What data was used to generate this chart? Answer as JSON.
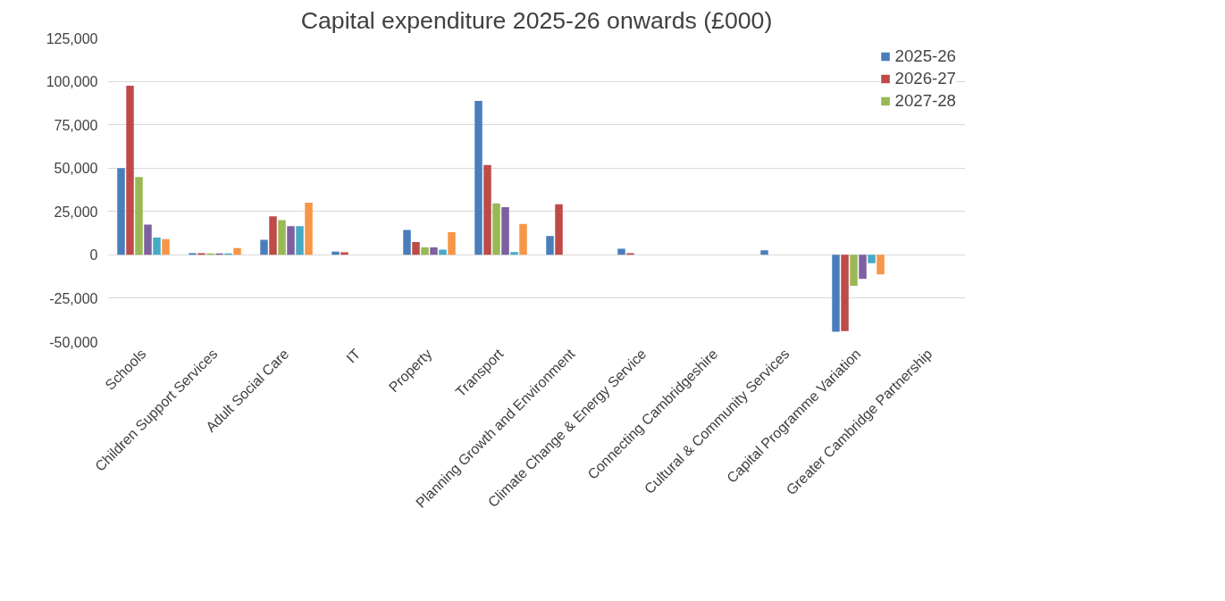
{
  "chart_data": {
    "type": "bar",
    "title": "Capital expenditure 2025-26 onwards (£000)",
    "categories": [
      "Schools",
      "Children Support Services",
      "Adult Social Care",
      "IT",
      "Property",
      "Transport",
      "Planning Growth and Environment",
      "Climate Change & Energy Service",
      "Connecting Cambridgeshire",
      "Cultural & Community Services",
      "Capital Programme Variation",
      "Greater Cambridge Partnership"
    ],
    "series": [
      {
        "name": "2025-26",
        "color": "#4a7ebb",
        "values": [
          50000,
          1000,
          8700,
          1800,
          14300,
          88700,
          10900,
          3500,
          null,
          2600,
          -44400,
          null
        ]
      },
      {
        "name": "2026-27",
        "color": "#be4b48",
        "values": [
          97400,
          1000,
          22200,
          1500,
          7400,
          51800,
          29100,
          1000,
          null,
          null,
          -44000,
          null
        ]
      },
      {
        "name": "2027-28",
        "color": "#98b954",
        "values": [
          44800,
          800,
          20000,
          null,
          4300,
          29600,
          null,
          null,
          null,
          null,
          -17800,
          null
        ]
      },
      {
        "color": "#7d60a0",
        "values": [
          17400,
          800,
          16500,
          null,
          4300,
          27400,
          null,
          null,
          null,
          null,
          -13900,
          null
        ]
      },
      {
        "color": "#46aac5",
        "values": [
          10000,
          800,
          16500,
          null,
          3000,
          1600,
          null,
          null,
          null,
          null,
          -4800,
          null
        ]
      },
      {
        "color": "#f79646",
        "values": [
          9100,
          3900,
          30000,
          null,
          13000,
          17800,
          null,
          null,
          null,
          null,
          -11300,
          null
        ]
      }
    ],
    "ylim": [
      -50000,
      125000
    ],
    "yticks": [
      {
        "value": -50000,
        "label": "-50,000"
      },
      {
        "value": -25000,
        "label": "-25,000"
      },
      0,
      {
        "value": 25000,
        "label": "25,000"
      },
      {
        "value": 50000,
        "label": "50,000"
      },
      {
        "value": 75000,
        "label": "75,000"
      },
      {
        "value": 100000,
        "label": "100,000"
      },
      {
        "value": 125000,
        "label": "125,000"
      }
    ],
    "grid": "y",
    "legend": "top right"
  }
}
